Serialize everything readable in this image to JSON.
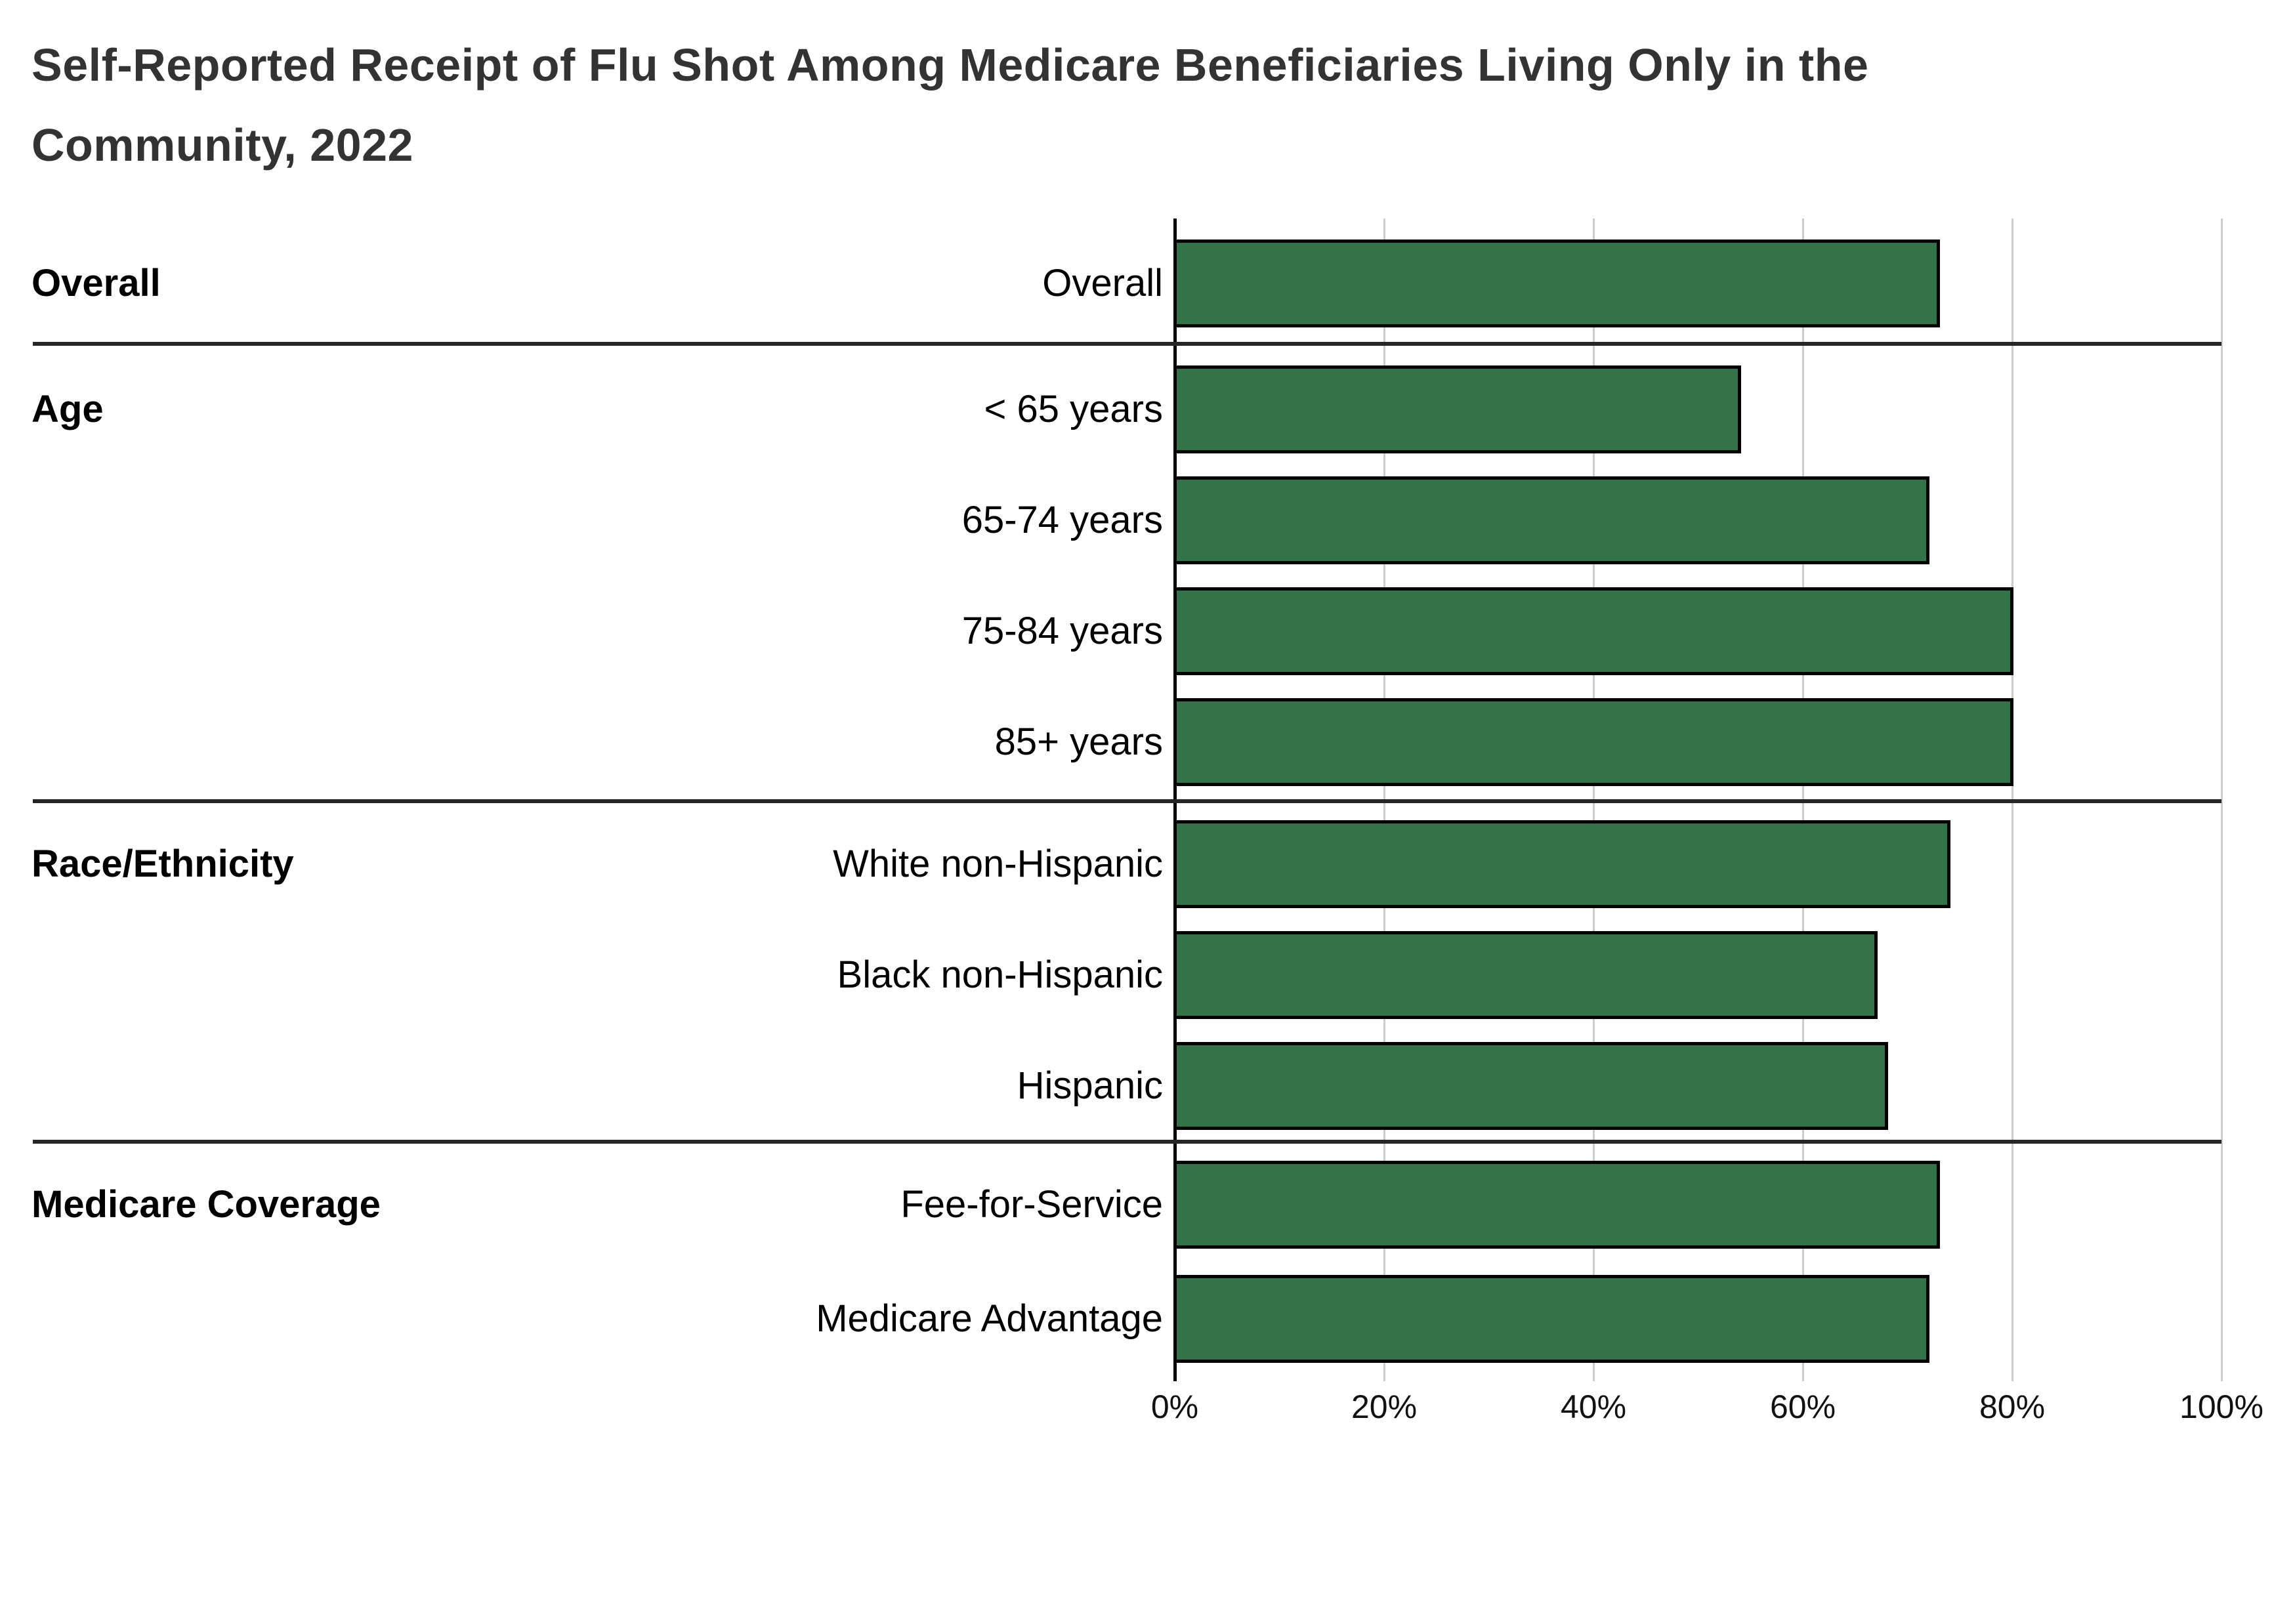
{
  "title": {
    "line1": "Self-Reported Receipt of Flu Shot Among Medicare Beneficiaries Living Only in the",
    "line2": "Community, 2022"
  },
  "colors": {
    "bar_fill": "#327348",
    "bar_border": "#000000",
    "gridline": "#cccccc",
    "axis_line": "#000000",
    "divider": "#262626",
    "title_text": "#333333",
    "label_text": "#000000",
    "tick_text": "#111111",
    "background": "#ffffff"
  },
  "chart_data": {
    "type": "bar",
    "orientation": "horizontal",
    "title": "Self-Reported Receipt of Flu Shot Among Medicare Beneficiaries Living Only in the Community, 2022",
    "xlabel": "",
    "ylabel": "",
    "unit": "%",
    "xlim": [
      0,
      100
    ],
    "grid": true,
    "x_ticks": [
      {
        "label": "0%",
        "value": 0
      },
      {
        "label": "20%",
        "value": 20
      },
      {
        "label": "40%",
        "value": 40
      },
      {
        "label": "60%",
        "value": 60
      },
      {
        "label": "80%",
        "value": 80
      },
      {
        "label": "100%",
        "value": 100
      }
    ],
    "groups": [
      {
        "label": "Overall",
        "rows": [
          {
            "label": "Overall",
            "value": 73
          }
        ]
      },
      {
        "label": "Age",
        "rows": [
          {
            "label": "< 65 years",
            "value": 54
          },
          {
            "label": "65-74 years",
            "value": 72
          },
          {
            "label": "75-84 years",
            "value": 80
          },
          {
            "label": "85+ years",
            "value": 80
          }
        ]
      },
      {
        "label": "Race/Ethnicity",
        "rows": [
          {
            "label": "White non-Hispanic",
            "value": 74
          },
          {
            "label": "Black non-Hispanic",
            "value": 67
          },
          {
            "label": "Hispanic",
            "value": 68
          }
        ]
      },
      {
        "label": "Medicare Coverage",
        "rows": [
          {
            "label": "Fee-for-Service",
            "value": 73
          },
          {
            "label": "Medicare Advantage",
            "value": 72
          }
        ]
      }
    ]
  }
}
